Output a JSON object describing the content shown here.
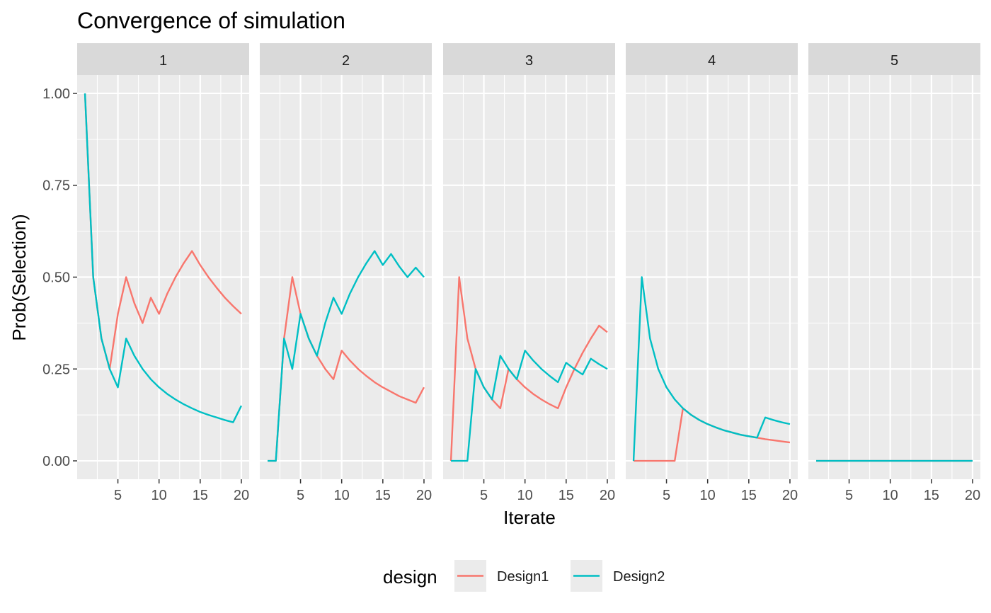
{
  "chart_data": {
    "type": "line",
    "title": "Convergence of simulation",
    "xlabel": "Iterate",
    "ylabel": "Prob(Selection)",
    "xlim": [
      1,
      20
    ],
    "ylim": [
      0,
      1
    ],
    "x_ticks": [
      5,
      10,
      15,
      20
    ],
    "y_ticks": [
      0,
      0.25,
      0.5,
      0.75,
      1
    ],
    "y_tick_labels": [
      "0.00",
      "0.25",
      "0.50",
      "0.75",
      "1.00"
    ],
    "grid": true,
    "legend": {
      "title": "design",
      "placement": "bottom",
      "entries": [
        "Design1",
        "Design2"
      ]
    },
    "colors": {
      "Design1": "#F8766D",
      "Design2": "#00BFC4"
    },
    "x": [
      1,
      2,
      3,
      4,
      5,
      6,
      7,
      8,
      9,
      10,
      11,
      12,
      13,
      14,
      15,
      16,
      17,
      18,
      19,
      20
    ],
    "panels": [
      {
        "label": "1",
        "series": [
          {
            "name": "Design1",
            "values": [
              1,
              0.5,
              0.333,
              0.25,
              0.4,
              0.5,
              0.429,
              0.375,
              0.444,
              0.4,
              0.455,
              0.5,
              0.538,
              0.571,
              0.533,
              0.5,
              0.471,
              0.444,
              0.421,
              0.4
            ]
          },
          {
            "name": "Design2",
            "values": [
              1,
              0.5,
              0.333,
              0.25,
              0.2,
              0.333,
              0.286,
              0.25,
              0.222,
              0.2,
              0.182,
              0.167,
              0.154,
              0.143,
              0.133,
              0.125,
              0.118,
              0.111,
              0.105,
              0.15
            ]
          }
        ]
      },
      {
        "label": "2",
        "series": [
          {
            "name": "Design1",
            "values": [
              0,
              0,
              0.333,
              0.5,
              0.4,
              0.333,
              0.286,
              0.25,
              0.222,
              0.3,
              0.273,
              0.25,
              0.231,
              0.214,
              0.2,
              0.188,
              0.176,
              0.167,
              0.158,
              0.2
            ]
          },
          {
            "name": "Design2",
            "values": [
              0,
              0,
              0.333,
              0.25,
              0.4,
              0.333,
              0.286,
              0.375,
              0.444,
              0.4,
              0.455,
              0.5,
              0.538,
              0.571,
              0.533,
              0.563,
              0.529,
              0.5,
              0.526,
              0.5
            ]
          }
        ]
      },
      {
        "label": "3",
        "series": [
          {
            "name": "Design1",
            "values": [
              0,
              0.5,
              0.333,
              0.25,
              0.2,
              0.167,
              0.143,
              0.25,
              0.222,
              0.2,
              0.182,
              0.167,
              0.154,
              0.143,
              0.2,
              0.25,
              0.294,
              0.333,
              0.368,
              0.35
            ]
          },
          {
            "name": "Design2",
            "values": [
              0,
              0,
              0,
              0.25,
              0.2,
              0.167,
              0.286,
              0.25,
              0.222,
              0.3,
              0.273,
              0.25,
              0.231,
              0.214,
              0.267,
              0.25,
              0.235,
              0.278,
              0.263,
              0.25
            ]
          }
        ]
      },
      {
        "label": "4",
        "series": [
          {
            "name": "Design1",
            "values": [
              0,
              0,
              0,
              0,
              0,
              0,
              0.143,
              0.125,
              0.111,
              0.1,
              0.091,
              0.083,
              0.077,
              0.071,
              0.067,
              0.063,
              0.059,
              0.056,
              0.053,
              0.05
            ]
          },
          {
            "name": "Design2",
            "values": [
              0,
              0.5,
              0.333,
              0.25,
              0.2,
              0.167,
              0.143,
              0.125,
              0.111,
              0.1,
              0.091,
              0.083,
              0.077,
              0.071,
              0.067,
              0.063,
              0.118,
              0.111,
              0.105,
              0.1
            ]
          }
        ]
      },
      {
        "label": "5",
        "series": [
          {
            "name": "Design1",
            "values": [
              0,
              0,
              0,
              0,
              0,
              0,
              0,
              0,
              0,
              0,
              0,
              0,
              0,
              0,
              0,
              0,
              0,
              0,
              0,
              0
            ]
          },
          {
            "name": "Design2",
            "values": [
              0,
              0,
              0,
              0,
              0,
              0,
              0,
              0,
              0,
              0,
              0,
              0,
              0,
              0,
              0,
              0,
              0,
              0,
              0,
              0
            ]
          }
        ]
      }
    ]
  }
}
